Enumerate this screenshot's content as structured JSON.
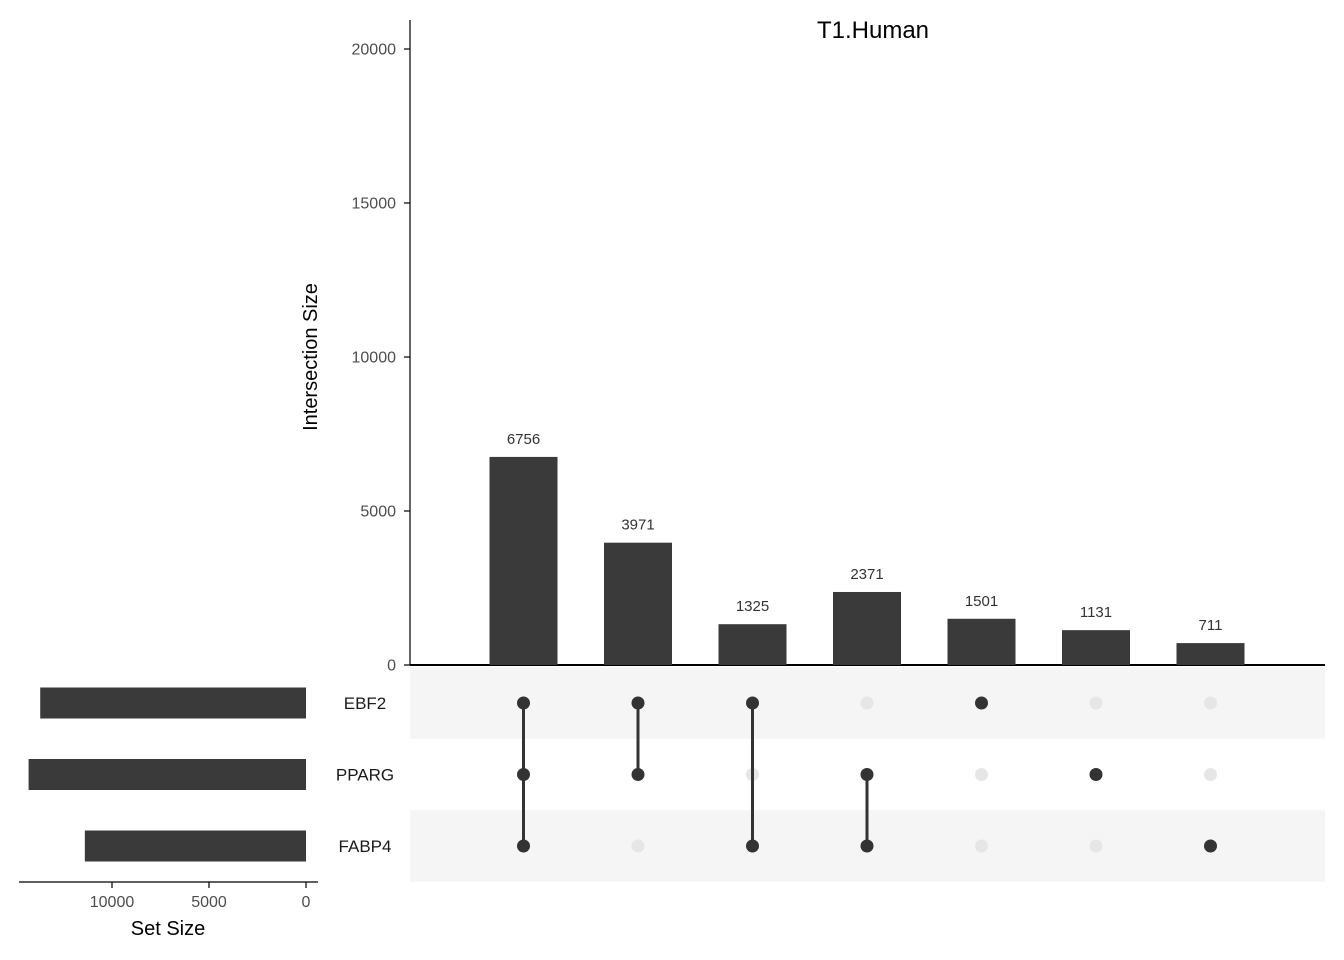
{
  "chart_data": {
    "type": "upset",
    "title": "T1.Human",
    "intersection_axis": {
      "label": "Intersection Size",
      "ylim": [
        0,
        20000
      ],
      "ticks": [
        "0",
        "5000",
        "10000",
        "15000",
        "20000"
      ]
    },
    "set_size_axis": {
      "label": "Set Size",
      "ticks": [
        "10000",
        "5000",
        "0"
      ]
    },
    "sets": [
      {
        "name": "EBF2",
        "size": 13700
      },
      {
        "name": "PPARG",
        "size": 14300
      },
      {
        "name": "FABP4",
        "size": 11400
      }
    ],
    "intersections": [
      {
        "value": 6756,
        "label": "6756",
        "members": [
          "EBF2",
          "PPARG",
          "FABP4"
        ]
      },
      {
        "value": 3971,
        "label": "3971",
        "members": [
          "EBF2",
          "PPARG"
        ]
      },
      {
        "value": 1325,
        "label": "1325",
        "members": [
          "EBF2",
          "FABP4"
        ]
      },
      {
        "value": 2371,
        "label": "2371",
        "members": [
          "PPARG",
          "FABP4"
        ]
      },
      {
        "value": 1501,
        "label": "1501",
        "members": [
          "EBF2"
        ]
      },
      {
        "value": 1131,
        "label": "1131",
        "members": [
          "PPARG"
        ]
      },
      {
        "value": 711,
        "label": "711",
        "members": [
          "FABP4"
        ]
      }
    ],
    "colors": {
      "bar": "#3a3a3a",
      "dot_active": "#333333",
      "dot_inactive": "#e6e6e6",
      "stripe": "#f5f5f5",
      "axis": "#000000"
    }
  }
}
